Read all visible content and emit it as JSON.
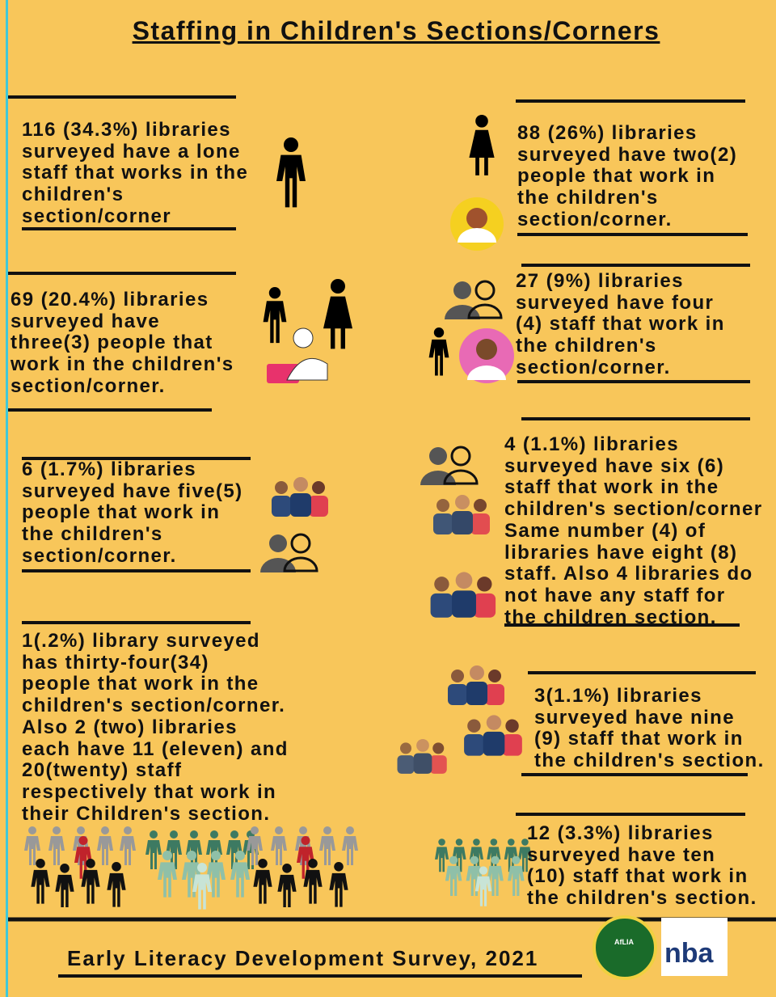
{
  "title": "Staffing in Children's Sections/Corners",
  "blocks": [
    {
      "lines": [
        "116 (34.3%) libraries",
        "surveyed have a lone",
        "staff that works in the",
        "children's",
        "section/corner"
      ]
    },
    {
      "lines": [
        "88 (26%) libraries",
        "surveyed have two(2)",
        "people that work in",
        "the children's",
        "section/corner."
      ]
    },
    {
      "lines": [
        "69 (20.4%) libraries",
        "surveyed have",
        "three(3) people that",
        "work in the children's",
        "section/corner."
      ]
    },
    {
      "lines": [
        "27 (9%) libraries",
        "surveyed have four",
        "(4) staff that work in",
        "the children's",
        "section/corner."
      ]
    },
    {
      "lines": [
        "6 (1.7%) libraries",
        "surveyed have five(5)",
        "people that work in",
        "the children's",
        "section/corner."
      ]
    },
    {
      "lines": [
        "4 (1.1%) libraries",
        "surveyed have six (6)",
        "staff that work in the",
        "children's section/corner",
        "Same number (4) of",
        "libraries have eight (8)",
        "staff. Also 4 libraries do",
        "not have any staff for",
        "the children section."
      ]
    },
    {
      "lines": [
        "1(.2%) library surveyed",
        "has thirty-four(34)",
        "people that work in the",
        "children's section/corner.",
        "Also 2 (two) libraries",
        "each have 11 (eleven) and",
        "20(twenty) staff",
        "respectively that work in",
        "their Children's section."
      ]
    },
    {
      "lines": [
        "3(1.1%) libraries",
        "surveyed have nine",
        "(9) staff that work in",
        "the children's section."
      ]
    },
    {
      "lines": [
        "12 (3.3%) libraries",
        "surveyed have ten",
        "(10) staff that work in",
        "the children's section."
      ]
    }
  ],
  "footer": {
    "text": "Early Literacy Development Survey, 2021",
    "logo_left": "AfLIA",
    "logo_right": "nba"
  }
}
